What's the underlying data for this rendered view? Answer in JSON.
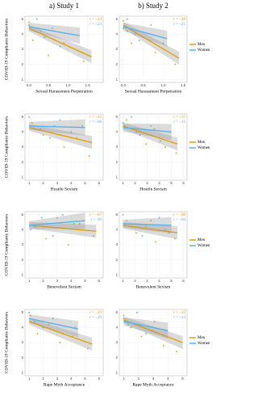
{
  "chart_data": [
    {
      "type": "scatter",
      "title": "a) Study 1",
      "ylabel": "COVID-19 Compliance Behaviors",
      "xlabel": "Sexual Harassment Perpetration",
      "xlim": [
        -0.1,
        1.9
      ],
      "xticks": [
        {
          "value": 0,
          "label": "0.0"
        },
        {
          "value": 0.5,
          "label": "0.5"
        },
        {
          "value": 1,
          "label": "1.0"
        },
        {
          "value": 1.5,
          "label": "1.5"
        }
      ],
      "ylim": [
        0.8,
        5.2
      ],
      "yticks": [
        1,
        2,
        3,
        4,
        5
      ],
      "series": [
        {
          "color": "#E69F00",
          "x": [
            0,
            0.1,
            0.3,
            0.5,
            0.9,
            1.4
          ],
          "values": [
            4.8,
            3.6,
            4.2,
            2.6,
            3.4,
            2.2
          ],
          "trend": {
            "x": [
              0,
              1.6
            ],
            "values": [
              4.4,
              2.5
            ]
          }
        },
        {
          "color": "#56B4E9",
          "x": [
            0,
            0.2,
            0.4,
            0.6,
            0.8,
            1.1
          ],
          "values": [
            4.6,
            5,
            3.8,
            4.4,
            3.2,
            4.0
          ],
          "trend": {
            "x": [
              0,
              1.3
            ],
            "values": [
              4.5,
              3.9
            ]
          }
        }
      ],
      "annotations": [
        {
          "text": "r = -.44",
          "color": "#E69F00"
        },
        {
          "text": "r = -.24",
          "color": "#56B4E9"
        }
      ]
    },
    {
      "type": "scatter",
      "title": "b) Study 2",
      "xlabel": "Sexual Harassment Perpetration",
      "xlim": [
        -0.1,
        1.6
      ],
      "xticks": [
        {
          "value": 0,
          "label": "0.0"
        },
        {
          "value": 0.5,
          "label": "0.5"
        },
        {
          "value": 1,
          "label": "1.0"
        },
        {
          "value": 1.5,
          "label": "1.5"
        }
      ],
      "ylim": [
        0.8,
        5.2
      ],
      "yticks": [
        1,
        2,
        3,
        4,
        5
      ],
      "series": [
        {
          "name": "Men",
          "color": "#E69F00",
          "x": [
            0,
            0.1,
            0.2,
            0.5,
            0.8,
            1.3
          ],
          "values": [
            4.9,
            4.2,
            3.4,
            3.8,
            2.8,
            2.0
          ],
          "trend": {
            "x": [
              0,
              1.4
            ],
            "values": [
              4.6,
              2.4
            ]
          }
        },
        {
          "name": "Women",
          "color": "#56B4E9",
          "x": [
            0,
            0.1,
            0.3,
            0.4,
            0.7,
            1.0
          ],
          "values": [
            4.4,
            5,
            4.0,
            3.6,
            4.6,
            3.4
          ],
          "trend": {
            "x": [
              0,
              1.1
            ],
            "values": [
              4.5,
              3.7
            ]
          }
        }
      ],
      "annotations": [
        {
          "text": "r = -.40",
          "color": "#E69F00"
        },
        {
          "text": "r = -.21",
          "color": "#56B4E9"
        }
      ],
      "legend": "right"
    },
    {
      "type": "scatter",
      "ylabel": "COVID-19 Compliance Behaviors",
      "xlabel": "Hostile Sexism",
      "xlim": [
        0.7,
        6.3
      ],
      "xticks": [
        1,
        2,
        3,
        4,
        5,
        6
      ],
      "ylim": [
        0.8,
        5.2
      ],
      "yticks": [
        1,
        2,
        3,
        4,
        5
      ],
      "series": [
        {
          "color": "#E69F00",
          "x": [
            1.2,
            2,
            2.8,
            3.5,
            4.4,
            5.3
          ],
          "values": [
            4.6,
            3.8,
            4.4,
            3.0,
            3.6,
            2.4
          ],
          "trend": {
            "x": [
              1,
              5.5
            ],
            "values": [
              4.3,
              3.3
            ]
          }
        },
        {
          "color": "#56B4E9",
          "x": [
            1,
            1.8,
            2.5,
            3.2,
            4,
            4.8
          ],
          "values": [
            5,
            4.2,
            3.6,
            4.8,
            4.0,
            4.4
          ],
          "trend": {
            "x": [
              1,
              5
            ],
            "values": [
              4.4,
              4.3
            ]
          }
        }
      ],
      "annotations": [
        {
          "text": "r = -.33",
          "color": "#E69F00"
        },
        {
          "text": "r = -.08",
          "color": "#56B4E9"
        }
      ]
    },
    {
      "type": "scatter",
      "xlabel": "Hostile Sexism",
      "xlim": [
        0.7,
        6.3
      ],
      "xticks": [
        1,
        2,
        3,
        4,
        5,
        6
      ],
      "ylim": [
        0.8,
        5.2
      ],
      "yticks": [
        1,
        2,
        3,
        4,
        5
      ],
      "series": [
        {
          "name": "Men",
          "color": "#E69F00",
          "x": [
            1.3,
            2.1,
            2.9,
            3.6,
            4.5,
            5.4
          ],
          "values": [
            4.8,
            4.0,
            3.2,
            4.2,
            3.0,
            2.6
          ],
          "trend": {
            "x": [
              1,
              5.5
            ],
            "values": [
              4.4,
              3.2
            ]
          }
        },
        {
          "name": "Women",
          "color": "#56B4E9",
          "x": [
            1,
            1.7,
            2.4,
            3.3,
            4.1,
            4.9
          ],
          "values": [
            4.6,
            5,
            3.8,
            4.4,
            3.4,
            4.0
          ],
          "trend": {
            "x": [
              1,
              5
            ],
            "values": [
              4.3,
              4.0
            ]
          }
        }
      ],
      "annotations": [
        {
          "text": "r = -.37",
          "color": "#E69F00"
        },
        {
          "text": "r = -.11",
          "color": "#56B4E9"
        }
      ],
      "legend": "right"
    },
    {
      "type": "scatter",
      "ylabel": "COVID-19 Compliance Behaviors",
      "xlabel": "Benevolent Sexism",
      "xlim": [
        0.7,
        6.3
      ],
      "xticks": [
        1,
        2,
        3,
        4,
        5,
        6
      ],
      "ylim": [
        0.8,
        5.2
      ],
      "yticks": [
        1,
        2,
        3,
        4,
        5
      ],
      "series": [
        {
          "color": "#E69F00",
          "x": [
            1.4,
            2.2,
            3,
            3.8,
            4.6,
            5.6
          ],
          "values": [
            4.2,
            3.4,
            4.8,
            3.0,
            4.4,
            3.6
          ],
          "trend": {
            "x": [
              1,
              5.8
            ],
            "values": [
              4.3,
              3.9
            ]
          }
        },
        {
          "color": "#56B4E9",
          "x": [
            1.1,
            1.9,
            2.7,
            3.4,
            4.2,
            4.9
          ],
          "values": [
            4.0,
            4.8,
            3.6,
            5,
            4.4,
            4.6
          ],
          "trend": {
            "x": [
              1,
              5
            ],
            "values": [
              4.3,
              4.6
            ]
          }
        }
      ],
      "annotations": [
        {
          "text": "r = -.07",
          "color": "#E69F00"
        },
        {
          "text": "r = .09",
          "color": "#56B4E9"
        }
      ]
    },
    {
      "type": "scatter",
      "xlabel": "Benevolent Sexism",
      "xlim": [
        0.7,
        6.3
      ],
      "xticks": [
        1,
        2,
        3,
        4,
        5,
        6
      ],
      "ylim": [
        0.8,
        5.2
      ],
      "yticks": [
        1,
        2,
        3,
        4,
        5
      ],
      "series": [
        {
          "name": "Men",
          "color": "#E69F00",
          "x": [
            1.3,
            2.1,
            2.9,
            3.7,
            4.5,
            5.3
          ],
          "values": [
            4.6,
            3.8,
            4.2,
            3.2,
            4.0,
            3.4
          ],
          "trend": {
            "x": [
              1,
              5.5
            ],
            "values": [
              4.3,
              3.8
            ]
          }
        },
        {
          "name": "Women",
          "color": "#56B4E9",
          "x": [
            1,
            1.8,
            2.6,
            3.3,
            4,
            4.8
          ],
          "values": [
            5,
            4.2,
            3.6,
            4.6,
            4.8,
            3.8
          ],
          "trend": {
            "x": [
              1,
              5
            ],
            "values": [
              4.4,
              4.3
            ]
          }
        }
      ],
      "annotations": [
        {
          "text": "r = -.08",
          "color": "#E69F00"
        },
        {
          "text": "r = -.04",
          "color": "#56B4E9"
        }
      ],
      "legend": "right"
    },
    {
      "type": "scatter",
      "ylabel": "COVID-19 Compliance Behaviors",
      "xlabel": "Rape Myth Acceptance",
      "xlim": [
        0.7,
        6.3
      ],
      "xticks": [
        1,
        2,
        3,
        4,
        5,
        6
      ],
      "ylim": [
        0.8,
        5.2
      ],
      "yticks": [
        1,
        2,
        3,
        4,
        5
      ],
      "series": [
        {
          "color": "#E69F00",
          "x": [
            1.1,
            1.6,
            2.4,
            3.2,
            4.1,
            5.2
          ],
          "values": [
            4.8,
            3.6,
            4.2,
            3.0,
            3.4,
            2.6
          ],
          "trend": {
            "x": [
              1,
              5.5
            ],
            "values": [
              4.4,
              2.9
            ]
          }
        },
        {
          "color": "#56B4E9",
          "x": [
            1,
            1.4,
            2,
            2.7,
            3.4,
            4.3
          ],
          "values": [
            5,
            4.4,
            4.0,
            4.6,
            3.6,
            4.0
          ],
          "trend": {
            "x": [
              1,
              4.5
            ],
            "values": [
              4.6,
              3.9
            ]
          }
        }
      ],
      "annotations": [
        {
          "text": "r = -.23",
          "color": "#E69F00"
        },
        {
          "text": "r = -.20",
          "color": "#56B4E9"
        }
      ]
    },
    {
      "type": "scatter",
      "xlabel": "Rape Myth Acceptance",
      "xlim": [
        0.7,
        5.3
      ],
      "xticks": [
        1,
        2,
        3,
        4,
        5
      ],
      "ylim": [
        0.8,
        5.2
      ],
      "yticks": [
        1,
        2,
        3,
        4,
        5
      ],
      "series": [
        {
          "name": "Men",
          "color": "#E69F00",
          "x": [
            1,
            1.5,
            2.2,
            2.9,
            3.7,
            4.6
          ],
          "values": [
            4.6,
            4.0,
            3.4,
            3.8,
            2.8,
            2.4
          ],
          "trend": {
            "x": [
              1,
              5
            ],
            "values": [
              4.5,
              3.0
            ]
          }
        },
        {
          "name": "Women",
          "color": "#56B4E9",
          "x": [
            1,
            1.3,
            1.9,
            2.5,
            3.1,
            3.8
          ],
          "values": [
            4.8,
            4.2,
            5,
            3.6,
            4.4,
            3.8
          ],
          "trend": {
            "x": [
              1,
              4
            ],
            "values": [
              4.4,
              3.8
            ]
          }
        }
      ],
      "annotations": [
        {
          "text": "r = -.33",
          "color": "#E69F00"
        },
        {
          "text": "r = -.14",
          "color": "#56B4E9"
        }
      ],
      "legend": "right"
    }
  ]
}
